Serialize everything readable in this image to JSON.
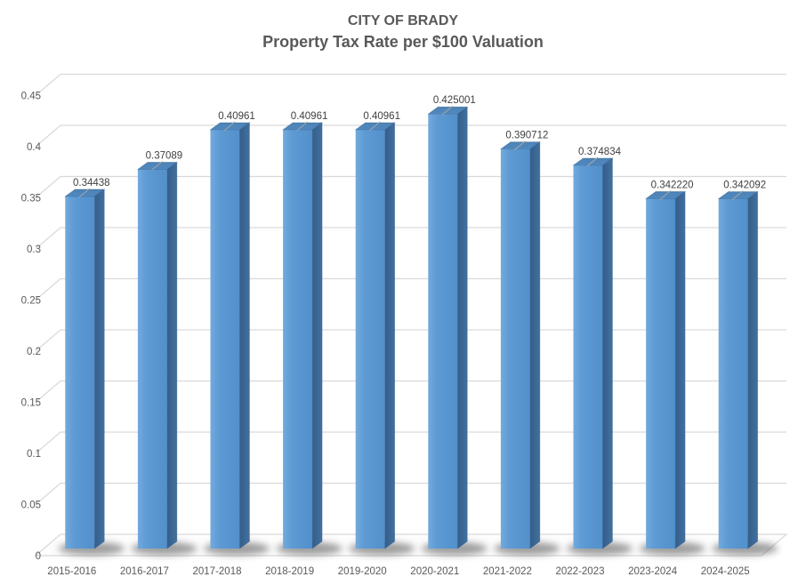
{
  "title": {
    "line1": "CITY OF BRADY",
    "line2": "Property Tax Rate per $100 Valuation"
  },
  "chart_data": {
    "type": "bar",
    "style": "3d-clustered-column",
    "title": "CITY OF BRADY",
    "subtitle": "Property Tax Rate per $100 Valuation",
    "categories": [
      "2015-2016",
      "2016-2017",
      "2017-2018",
      "2018-2019",
      "2019-2020",
      "2020-2021",
      "2021-2022",
      "2022-2023",
      "2023-2024",
      "2024-2025"
    ],
    "values": [
      0.34438,
      0.37089,
      0.40961,
      0.40961,
      0.40961,
      0.425001,
      0.390712,
      0.374834,
      0.34222,
      0.342092
    ],
    "data_labels": [
      "0.34438",
      "0.37089",
      "0.40961",
      "0.40961",
      "0.40961",
      "0.425001",
      "0.390712",
      "0.374834",
      "0.342220",
      "0.342092"
    ],
    "xlabel": "",
    "ylabel": "",
    "ylim": [
      0,
      0.45
    ],
    "ytick_step": 0.05,
    "ytick_labels": [
      "0",
      "0.05",
      "0.1",
      "0.15",
      "0.2",
      "0.25",
      "0.3",
      "0.35",
      "0.4",
      "0.45"
    ],
    "grid": true,
    "legend": "none",
    "colors": {
      "bar_front": "#5b9bd5",
      "bar_top": "#4d83b8",
      "bar_side": "#3f6b9a",
      "gridline": "#d9d9d9",
      "axis_text": "#595959",
      "data_label_text": "#404040",
      "title_text": "#595959",
      "leader_line": "#a6a6a6",
      "shadow": "#3f3f3f",
      "floor_fill": "#fdfdfd",
      "background": "#ffffff"
    }
  }
}
